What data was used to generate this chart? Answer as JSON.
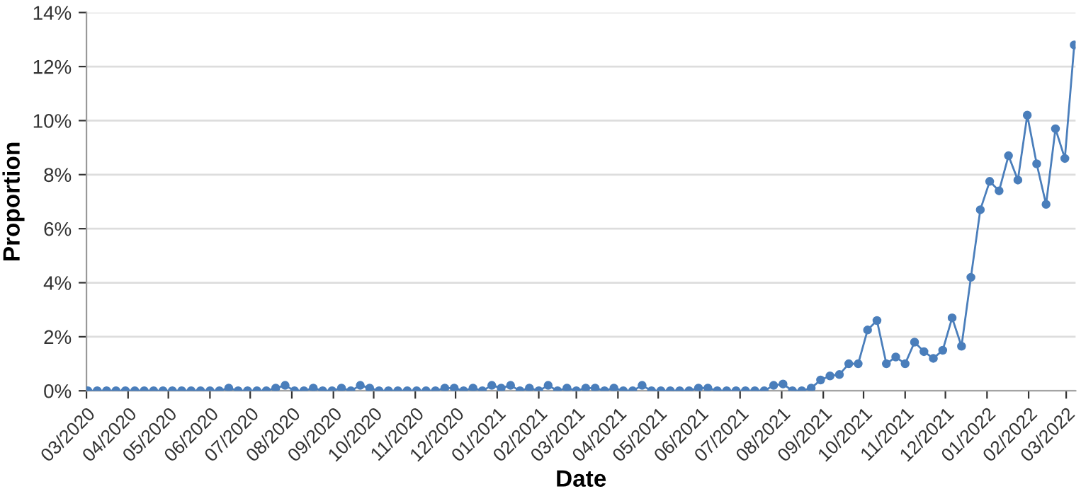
{
  "chart_data": {
    "type": "line",
    "xlabel": "Date",
    "ylabel": "Proportion",
    "x": [
      "2020-03-02",
      "2020-03-09",
      "2020-03-16",
      "2020-03-23",
      "2020-03-30",
      "2020-04-06",
      "2020-04-13",
      "2020-04-20",
      "2020-04-27",
      "2020-05-04",
      "2020-05-11",
      "2020-05-18",
      "2020-05-25",
      "2020-06-01",
      "2020-06-08",
      "2020-06-15",
      "2020-06-22",
      "2020-06-29",
      "2020-07-06",
      "2020-07-13",
      "2020-07-20",
      "2020-07-27",
      "2020-08-03",
      "2020-08-10",
      "2020-08-17",
      "2020-08-24",
      "2020-08-31",
      "2020-09-07",
      "2020-09-14",
      "2020-09-21",
      "2020-09-28",
      "2020-10-05",
      "2020-10-12",
      "2020-10-19",
      "2020-10-26",
      "2020-11-02",
      "2020-11-09",
      "2020-11-16",
      "2020-11-23",
      "2020-11-30",
      "2020-12-07",
      "2020-12-14",
      "2020-12-21",
      "2020-12-28",
      "2021-01-04",
      "2021-01-11",
      "2021-01-18",
      "2021-01-25",
      "2021-02-01",
      "2021-02-08",
      "2021-02-15",
      "2021-02-22",
      "2021-03-01",
      "2021-03-08",
      "2021-03-15",
      "2021-03-22",
      "2021-03-29",
      "2021-04-05",
      "2021-04-12",
      "2021-04-19",
      "2021-04-26",
      "2021-05-03",
      "2021-05-10",
      "2021-05-17",
      "2021-05-24",
      "2021-05-31",
      "2021-06-07",
      "2021-06-14",
      "2021-06-21",
      "2021-06-28",
      "2021-07-05",
      "2021-07-12",
      "2021-07-19",
      "2021-07-26",
      "2021-08-02",
      "2021-08-09",
      "2021-08-16",
      "2021-08-23",
      "2021-08-30",
      "2021-09-06",
      "2021-09-13",
      "2021-09-20",
      "2021-09-27",
      "2021-10-04",
      "2021-10-11",
      "2021-10-18",
      "2021-10-25",
      "2021-11-01",
      "2021-11-08",
      "2021-11-15",
      "2021-11-22",
      "2021-11-29",
      "2021-12-06",
      "2021-12-13",
      "2021-12-20",
      "2021-12-27",
      "2022-01-03",
      "2022-01-10",
      "2022-01-17",
      "2022-01-24",
      "2022-01-31",
      "2022-02-07",
      "2022-02-14",
      "2022-02-21",
      "2022-02-28",
      "2022-03-07"
    ],
    "series": [
      {
        "color": "#4a7ebb",
        "values": [
          0,
          0,
          0,
          0,
          0,
          0,
          0,
          0,
          0,
          0,
          0,
          0,
          0,
          0,
          0,
          0.1,
          0,
          0,
          0,
          0,
          0.1,
          0.2,
          0,
          0,
          0.1,
          0,
          0,
          0.1,
          0,
          0.2,
          0.1,
          0,
          0,
          0,
          0,
          0,
          0,
          0,
          0.1,
          0.1,
          0,
          0.1,
          0,
          0.2,
          0.1,
          0.2,
          0,
          0.1,
          0,
          0.2,
          0,
          0.1,
          0,
          0.1,
          0.1,
          0,
          0.1,
          0,
          0,
          0.2,
          0,
          0,
          0,
          0,
          0,
          0.1,
          0.1,
          0,
          0,
          0,
          0,
          0,
          0,
          0.2,
          0.25,
          0,
          0,
          0.1,
          0.4,
          0.55,
          0.6,
          1.0,
          1.0,
          2.25,
          2.6,
          1.0,
          1.25,
          1.0,
          1.8,
          1.45,
          1.2,
          1.5,
          2.7,
          1.65,
          4.2,
          6.7,
          7.75,
          7.4,
          8.7,
          7.8,
          10.2,
          8.4,
          6.9,
          9.7,
          8.6,
          12.8
        ]
      }
    ],
    "xlim": [
      "2020-03-01",
      "2022-03-08"
    ],
    "xticks": [
      {
        "value": "2020-03-01",
        "label": "03/2020"
      },
      {
        "value": "2020-04-01",
        "label": "04/2020"
      },
      {
        "value": "2020-05-01",
        "label": "05/2020"
      },
      {
        "value": "2020-06-01",
        "label": "06/2020"
      },
      {
        "value": "2020-07-01",
        "label": "07/2020"
      },
      {
        "value": "2020-08-01",
        "label": "08/2020"
      },
      {
        "value": "2020-09-01",
        "label": "09/2020"
      },
      {
        "value": "2020-10-01",
        "label": "10/2020"
      },
      {
        "value": "2020-11-01",
        "label": "11/2020"
      },
      {
        "value": "2020-12-01",
        "label": "12/2020"
      },
      {
        "value": "2021-01-01",
        "label": "01/2021"
      },
      {
        "value": "2021-02-01",
        "label": "02/2021"
      },
      {
        "value": "2021-03-01",
        "label": "03/2021"
      },
      {
        "value": "2021-04-01",
        "label": "04/2021"
      },
      {
        "value": "2021-05-01",
        "label": "05/2021"
      },
      {
        "value": "2021-06-01",
        "label": "06/2021"
      },
      {
        "value": "2021-07-01",
        "label": "07/2021"
      },
      {
        "value": "2021-08-01",
        "label": "08/2021"
      },
      {
        "value": "2021-09-01",
        "label": "09/2021"
      },
      {
        "value": "2021-10-01",
        "label": "10/2021"
      },
      {
        "value": "2021-11-01",
        "label": "11/2021"
      },
      {
        "value": "2021-12-01",
        "label": "12/2021"
      },
      {
        "value": "2022-01-01",
        "label": "01/2022"
      },
      {
        "value": "2022-02-01",
        "label": "02/2022"
      },
      {
        "value": "2022-03-01",
        "label": "03/2022"
      }
    ],
    "ylim": [
      0,
      14
    ],
    "yticks": [
      {
        "value": 0,
        "label": "0%"
      },
      {
        "value": 2,
        "label": "2%"
      },
      {
        "value": 4,
        "label": "4%"
      },
      {
        "value": 6,
        "label": "6%"
      },
      {
        "value": 8,
        "label": "8%"
      },
      {
        "value": 10,
        "label": "10%"
      },
      {
        "value": 12,
        "label": "12%"
      },
      {
        "value": 14,
        "label": "14%"
      }
    ],
    "grid": "y",
    "marker": "circle",
    "line_style": "solid"
  }
}
